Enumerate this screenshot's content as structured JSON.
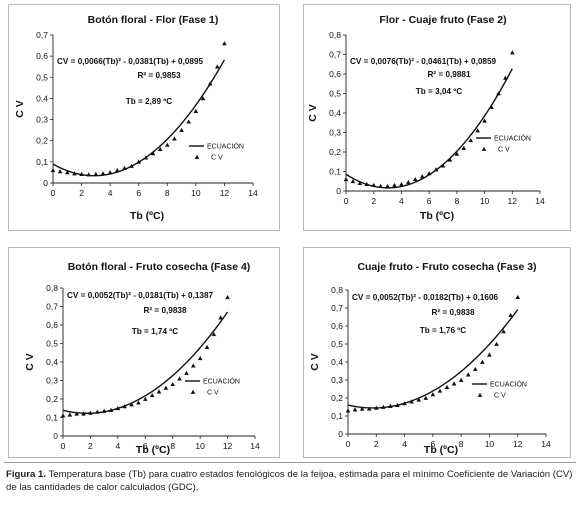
{
  "caption": {
    "label": "Figura 1.",
    "text": "Temperatura base (Tb) para cuatro estados fenológicos de la feijoa, estimada para el mínimo Coeficiente de Variación (CV) de las cantidades de calor calculados (GDC)."
  },
  "chart_data": [
    {
      "type": "scatter",
      "title": "Botón floral - Flor (Fase 1)",
      "xlabel": "Tb (ºC)",
      "ylabel": "C V",
      "equation": "CV = 0,0066(Tb)² - 0,0381(Tb) + 0,0895",
      "r2": "R² = 0,9853",
      "tb": "Tb = 2,89 ºC",
      "legend": {
        "line": "ECUACIÓN",
        "points": "C V"
      },
      "xlim": [
        0,
        14
      ],
      "ylim": [
        0,
        0.7
      ],
      "x_ticks": [
        "0",
        "2",
        "4",
        "6",
        "8",
        "10",
        "12",
        "14"
      ],
      "y_ticks": [
        "0",
        "0,1",
        "0,2",
        "0,3",
        "0,4",
        "0,5",
        "0,6",
        "0,7"
      ],
      "coef": [
        0.0066,
        -0.0381,
        0.0895
      ],
      "fit_range": [
        0,
        12
      ],
      "series": [
        {
          "name": "C V",
          "x": [
            0,
            0.5,
            1,
            1.5,
            2,
            2.5,
            3,
            3.5,
            4,
            4.5,
            5,
            5.5,
            6,
            6.5,
            7,
            7.5,
            8,
            8.5,
            9,
            9.5,
            10,
            10.5,
            11,
            11.5,
            12
          ],
          "y": [
            0.06,
            0.055,
            0.05,
            0.045,
            0.042,
            0.04,
            0.042,
            0.045,
            0.05,
            0.06,
            0.07,
            0.08,
            0.1,
            0.12,
            0.14,
            0.16,
            0.18,
            0.21,
            0.25,
            0.29,
            0.34,
            0.4,
            0.47,
            0.55,
            0.66
          ]
        }
      ]
    },
    {
      "type": "scatter",
      "title": "Flor - Cuaje fruto (Fase 2)",
      "xlabel": "Tb (ºC)",
      "ylabel": "C V",
      "equation": "CV = 0,0076(Tb)² - 0,0461(Tb) + 0,0859",
      "r2": "R² = 0,9881",
      "tb": "Tb = 3,04 ºC",
      "legend": {
        "line": "ECUACIÓN",
        "points": "C V"
      },
      "xlim": [
        0,
        14
      ],
      "ylim": [
        0,
        0.8
      ],
      "x_ticks": [
        "0",
        "2",
        "4",
        "6",
        "8",
        "10",
        "12",
        "14"
      ],
      "y_ticks": [
        "0",
        "0,1",
        "0,2",
        "0,3",
        "0,4",
        "0,5",
        "0,6",
        "0,7",
        "0,8"
      ],
      "coef": [
        0.0076,
        -0.0461,
        0.0859
      ],
      "fit_range": [
        0,
        12
      ],
      "series": [
        {
          "name": "C V",
          "x": [
            0,
            0.5,
            1,
            1.5,
            2,
            2.5,
            3,
            3.5,
            4,
            4.5,
            5,
            5.5,
            6,
            6.5,
            7,
            7.5,
            8,
            8.5,
            9,
            9.5,
            10,
            10.5,
            11,
            11.5,
            12
          ],
          "y": [
            0.06,
            0.05,
            0.04,
            0.035,
            0.03,
            0.025,
            0.025,
            0.03,
            0.035,
            0.045,
            0.06,
            0.075,
            0.09,
            0.11,
            0.13,
            0.16,
            0.19,
            0.22,
            0.26,
            0.31,
            0.36,
            0.43,
            0.5,
            0.58,
            0.71
          ]
        }
      ]
    },
    {
      "type": "scatter",
      "title": "Botón floral - Fruto cosecha (Fase 4)",
      "xlabel": "Tb (ºC)",
      "ylabel": "C V",
      "equation": "CV = 0,0052(Tb)² - 0,0181(Tb) + 0,1387",
      "r2": "R² = 0,9838",
      "tb": "Tb = 1,74 ºC",
      "legend": {
        "line": "ECUACIÓN",
        "points": "C V"
      },
      "xlim": [
        0,
        14
      ],
      "ylim": [
        0,
        0.8
      ],
      "x_ticks": [
        "0",
        "2",
        "4",
        "6",
        "8",
        "10",
        "12",
        "14"
      ],
      "y_ticks": [
        "0",
        "0,1",
        "0,2",
        "0,3",
        "0,4",
        "0,5",
        "0,6",
        "0,7",
        "0,8"
      ],
      "coef": [
        0.0052,
        -0.0181,
        0.1387
      ],
      "fit_range": [
        0,
        12
      ],
      "series": [
        {
          "name": "C V",
          "x": [
            0,
            0.5,
            1,
            1.5,
            2,
            2.5,
            3,
            3.5,
            4,
            4.5,
            5,
            5.5,
            6,
            6.5,
            7,
            7.5,
            8,
            8.5,
            9,
            9.5,
            10,
            10.5,
            11,
            11.5,
            12
          ],
          "y": [
            0.11,
            0.115,
            0.12,
            0.12,
            0.125,
            0.13,
            0.135,
            0.14,
            0.15,
            0.16,
            0.17,
            0.18,
            0.2,
            0.22,
            0.24,
            0.26,
            0.28,
            0.31,
            0.34,
            0.38,
            0.42,
            0.48,
            0.55,
            0.64,
            0.75
          ]
        }
      ]
    },
    {
      "type": "scatter",
      "title": "Cuaje fruto - Fruto cosecha (Fase 3)",
      "xlabel": "Tb (ºC)",
      "ylabel": "C V",
      "equation": "CV = 0,0052(Tb)² - 0,0182(Tb) + 0,1606",
      "r2": "R² = 0,9838",
      "tb": "Tb = 1,76 ºC",
      "legend": {
        "line": "ECUACIÓN",
        "points": "C V"
      },
      "xlim": [
        0,
        14
      ],
      "ylim": [
        0,
        0.8
      ],
      "x_ticks": [
        "0",
        "2",
        "4",
        "6",
        "8",
        "10",
        "12",
        "14"
      ],
      "y_ticks": [
        "0",
        "0,1",
        "0,2",
        "0,3",
        "0,4",
        "0,5",
        "0,6",
        "0,7",
        "0,8"
      ],
      "coef": [
        0.0052,
        -0.0182,
        0.1606
      ],
      "fit_range": [
        0,
        12
      ],
      "series": [
        {
          "name": "C V",
          "x": [
            0,
            0.5,
            1,
            1.5,
            2,
            2.5,
            3,
            3.5,
            4,
            4.5,
            5,
            5.5,
            6,
            6.5,
            7,
            7.5,
            8,
            8.5,
            9,
            9.5,
            10,
            10.5,
            11,
            11.5,
            12
          ],
          "y": [
            0.13,
            0.135,
            0.14,
            0.14,
            0.145,
            0.15,
            0.155,
            0.16,
            0.17,
            0.18,
            0.19,
            0.2,
            0.22,
            0.24,
            0.26,
            0.28,
            0.3,
            0.33,
            0.36,
            0.4,
            0.44,
            0.5,
            0.57,
            0.66,
            0.76
          ]
        }
      ]
    }
  ]
}
